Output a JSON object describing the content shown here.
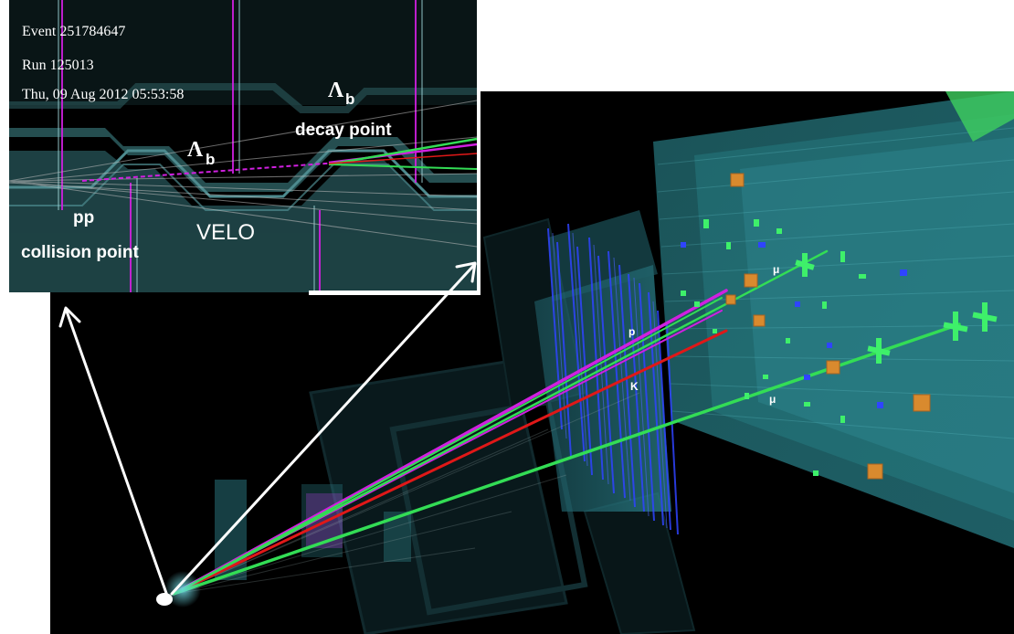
{
  "event_info": {
    "event": "Event 251784647",
    "run": "Run 125013",
    "date": "Thu, 09 Aug 2012 05:53:58"
  },
  "inset_labels": {
    "lambda_b_upper_symbol": "Λ",
    "lambda_b_upper_sub": "b",
    "decay_point": "decay point",
    "lambda_b_lower_symbol": "Λ",
    "lambda_b_lower_sub": "b",
    "pp": "pp",
    "collision_point": "collision point",
    "velo": "VELO"
  },
  "track_labels": {
    "proton": "p",
    "kaon": "K",
    "muon_upper": "μ",
    "muon_lower": "μ"
  },
  "colors": {
    "background": "#000000",
    "page": "#ffffff",
    "detector": "#2e7f84",
    "proton_track": "#d020e0",
    "kaon_track": "#e01818",
    "muon_track": "#33dd55",
    "hits_blue": "#2f44ff",
    "hits_orange": "#d98a2e",
    "hits_green": "#3ef06a"
  }
}
